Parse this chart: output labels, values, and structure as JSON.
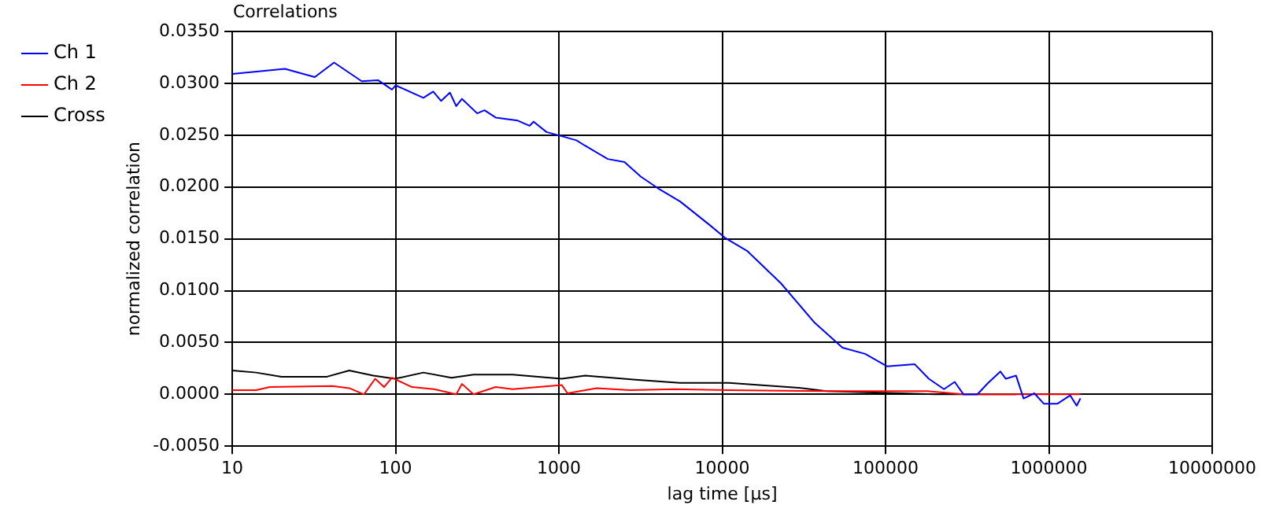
{
  "chart_data": {
    "type": "line",
    "title": "Correlations",
    "xlabel": "lag time [µs]",
    "ylabel": "normalized correlation",
    "log": "x",
    "grid": true,
    "legend": "top left",
    "marker": "none",
    "line_style": "solid",
    "xlim": [
      10,
      10000000
    ],
    "xticks": [
      10,
      100,
      1000,
      10000,
      100000,
      1000000,
      10000000
    ],
    "ylim": [
      -0.005,
      0.035
    ],
    "yticks": [
      {
        "value": -0.005,
        "label": "-0.0050"
      },
      {
        "value": 0,
        "label": "0.0000"
      },
      {
        "value": 0.005,
        "label": "0.0050"
      },
      {
        "value": 0.01,
        "label": "0.0100"
      },
      {
        "value": 0.015,
        "label": "0.0150"
      },
      {
        "value": 0.02,
        "label": "0.0200"
      },
      {
        "value": 0.025,
        "label": "0.0250"
      },
      {
        "value": 0.03,
        "label": "0.0300"
      },
      {
        "value": 0.035,
        "label": "0.0350"
      }
    ],
    "series": [
      {
        "name": "Ch 1",
        "color": "#0000ff",
        "x": [
          10,
          21,
          32,
          42,
          62,
          78,
          95,
          100,
          148,
          170,
          190,
          215,
          235,
          255,
          316,
          350,
          410,
          560,
          660,
          700,
          840,
          1040,
          1280,
          1440,
          1990,
          2520,
          3170,
          4020,
          5520,
          8270,
          10400,
          14300,
          22900,
          36800,
          54500,
          75000,
          102000,
          151000,
          184000,
          228000,
          265000,
          300000,
          365000,
          425000,
          505000,
          545000,
          630000,
          700000,
          815000,
          930000,
          1130000,
          1350000,
          1480000,
          1560000
        ],
        "values": [
          0.0309,
          0.0314,
          0.0306,
          0.032,
          0.0302,
          0.0303,
          0.0294,
          0.0298,
          0.0286,
          0.0292,
          0.0283,
          0.0291,
          0.0278,
          0.0285,
          0.0271,
          0.0274,
          0.0267,
          0.0264,
          0.0259,
          0.0263,
          0.0253,
          0.0249,
          0.0245,
          0.024,
          0.0227,
          0.0224,
          0.021,
          0.0199,
          0.0186,
          0.0164,
          0.0151,
          0.0138,
          0.0107,
          0.0069,
          0.0045,
          0.0039,
          0.0027,
          0.0029,
          0.0015,
          0.0005,
          0.0012,
          0.0,
          0.0,
          0.0011,
          0.0022,
          0.0015,
          0.0018,
          -0.0004,
          0.0001,
          -0.0009,
          -0.0009,
          -0.0001,
          -0.0011,
          -0.0004
        ]
      },
      {
        "name": "Ch 2",
        "color": "#ff0000",
        "x": [
          10,
          14,
          17,
          41,
          52,
          64,
          75,
          85,
          95,
          126,
          172,
          235,
          255,
          300,
          410,
          520,
          1040,
          1130,
          1700,
          2720,
          5100,
          11000,
          50000,
          180000,
          300000,
          1250000,
          1560000
        ],
        "values": [
          0.0004,
          0.0004,
          0.0007,
          0.0008,
          0.0006,
          0.0,
          0.0015,
          0.0007,
          0.0016,
          0.0007,
          0.0005,
          0.0,
          0.001,
          0.0,
          0.0007,
          0.0005,
          0.0009,
          0.0001,
          0.0006,
          0.0004,
          0.0005,
          0.0004,
          0.0003,
          0.0003,
          0.0,
          0.0,
          0.0
        ]
      },
      {
        "name": "Cross",
        "color": "#000000",
        "x": [
          10,
          14,
          20,
          38,
          52,
          73,
          99,
          148,
          220,
          300,
          520,
          1040,
          1450,
          2950,
          5500,
          11000,
          31000,
          43500,
          200000,
          630000
        ],
        "values": [
          0.0023,
          0.0021,
          0.0017,
          0.0017,
          0.0023,
          0.0018,
          0.0015,
          0.0021,
          0.0016,
          0.0019,
          0.0019,
          0.0015,
          0.0018,
          0.0014,
          0.0011,
          0.0011,
          0.0006,
          0.0003,
          0.0,
          0.0
        ]
      }
    ]
  }
}
